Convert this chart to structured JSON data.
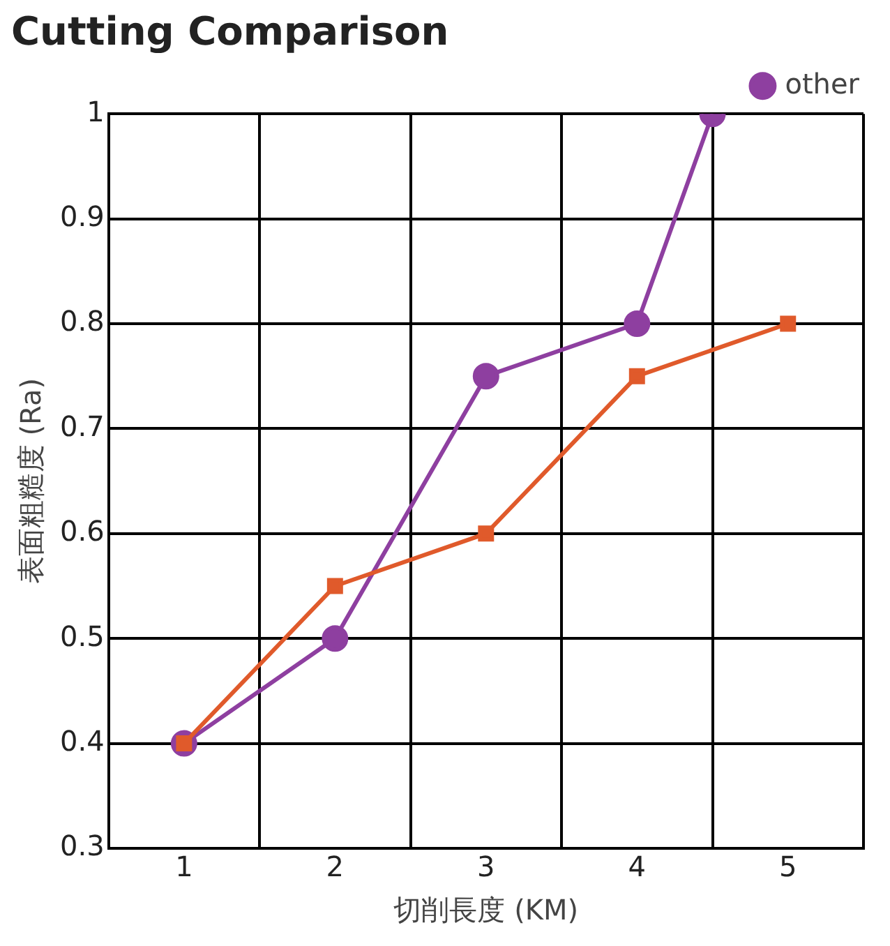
{
  "chart_data": {
    "type": "line",
    "title": "Cutting Comparison",
    "xlabel": "切削長度 (KM)",
    "ylabel": "表面粗糙度 (Ra)",
    "xlim": [
      0.5,
      5.5
    ],
    "xticks": [
      {
        "value": 0.5,
        "label": null
      },
      1,
      {
        "value": 1.5,
        "label": null
      },
      2,
      {
        "value": 2.5,
        "label": null
      },
      3,
      {
        "value": 3.5,
        "label": null
      },
      4,
      {
        "value": 4.5,
        "label": null
      },
      5,
      {
        "value": 5.5,
        "label": null
      }
    ],
    "ylim": [
      0.3,
      1
    ],
    "yticks": [
      0.3,
      0.4,
      0.5,
      0.6,
      0.7,
      0.8,
      0.9,
      1
    ],
    "grid": true,
    "legend": "top right",
    "series": [
      {
        "color": "#e05a2b",
        "marker": "square",
        "x": [
          1,
          2,
          3,
          4,
          5
        ],
        "values": [
          0.4,
          0.55,
          0.6,
          0.75,
          0.8
        ]
      },
      {
        "name": "other",
        "color": "#8e3fa0",
        "marker": "circle",
        "x": [
          1,
          2,
          3,
          4,
          4.5
        ],
        "values": [
          0.4,
          0.5,
          0.75,
          0.8,
          1.0
        ]
      }
    ]
  }
}
